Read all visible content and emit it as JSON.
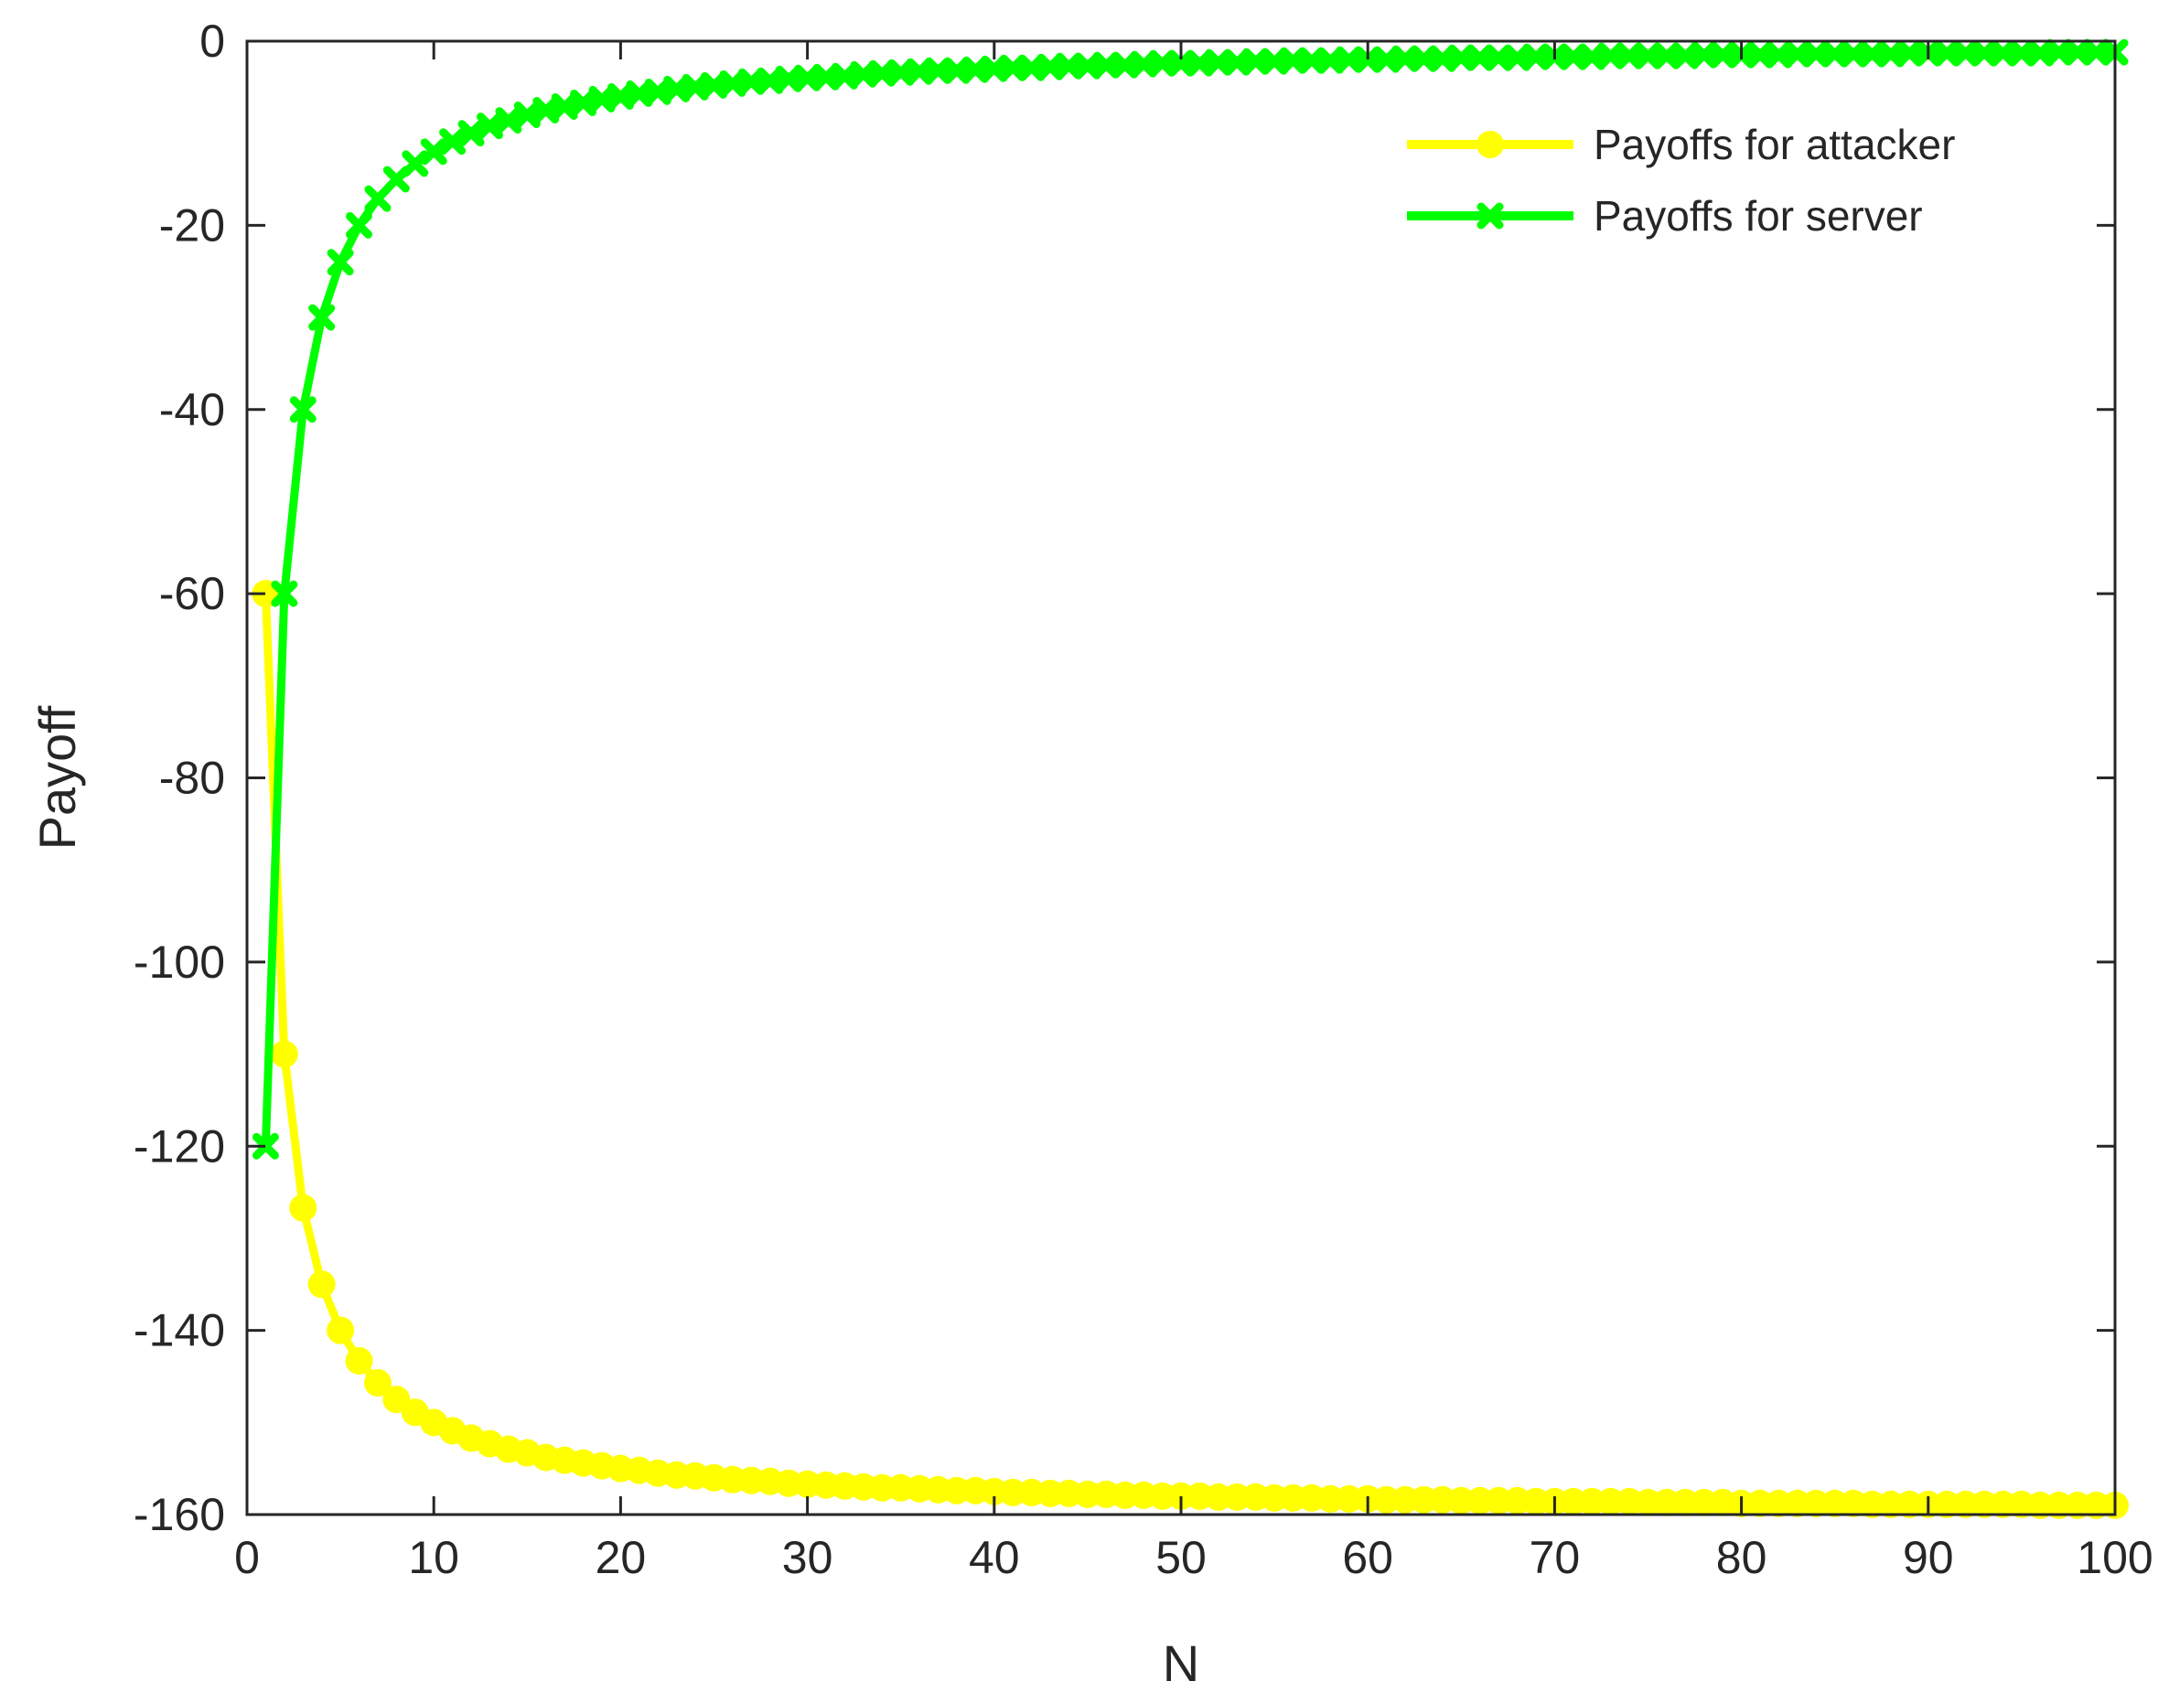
{
  "chart_data": {
    "type": "line",
    "title": "",
    "xlabel": "N",
    "ylabel": "Payoff",
    "xlim": [
      0,
      100
    ],
    "ylim": [
      -160,
      0
    ],
    "xticks": [
      0,
      10,
      20,
      30,
      40,
      50,
      60,
      70,
      80,
      90,
      100
    ],
    "yticks": [
      0,
      -20,
      -40,
      -60,
      -80,
      -100,
      -120,
      -140,
      -160
    ],
    "grid": false,
    "legend_position": "top-right",
    "x": [
      1,
      2,
      3,
      4,
      5,
      6,
      7,
      8,
      9,
      10,
      11,
      12,
      13,
      14,
      15,
      16,
      17,
      18,
      19,
      20,
      21,
      22,
      23,
      24,
      25,
      26,
      27,
      28,
      29,
      30,
      31,
      32,
      33,
      34,
      35,
      36,
      37,
      38,
      39,
      40,
      41,
      42,
      43,
      44,
      45,
      46,
      47,
      48,
      49,
      50,
      51,
      52,
      53,
      54,
      55,
      56,
      57,
      58,
      59,
      60,
      61,
      62,
      63,
      64,
      65,
      66,
      67,
      68,
      69,
      70,
      71,
      72,
      73,
      74,
      75,
      76,
      77,
      78,
      79,
      80,
      81,
      82,
      83,
      84,
      85,
      86,
      87,
      88,
      89,
      90,
      91,
      92,
      93,
      94,
      95,
      96,
      97,
      98,
      99,
      100
    ],
    "series": [
      {
        "name": "Payoffs for attacker",
        "color": "#FFFF00",
        "marker": "circle",
        "values": [
          -60.0,
          -110.0,
          -126.7,
          -135.0,
          -140.0,
          -143.3,
          -145.7,
          -147.5,
          -148.9,
          -150.0,
          -150.9,
          -151.7,
          -152.3,
          -152.9,
          -153.3,
          -153.8,
          -154.1,
          -154.4,
          -154.7,
          -155.0,
          -155.2,
          -155.5,
          -155.7,
          -155.8,
          -156.0,
          -156.2,
          -156.3,
          -156.4,
          -156.6,
          -156.7,
          -156.8,
          -156.9,
          -157.0,
          -157.1,
          -157.1,
          -157.2,
          -157.3,
          -157.4,
          -157.4,
          -157.5,
          -157.6,
          -157.6,
          -157.7,
          -157.7,
          -157.8,
          -157.8,
          -157.9,
          -157.9,
          -158.0,
          -158.0,
          -158.0,
          -158.1,
          -158.1,
          -158.1,
          -158.2,
          -158.2,
          -158.2,
          -158.3,
          -158.3,
          -158.3,
          -158.4,
          -158.4,
          -158.4,
          -158.4,
          -158.5,
          -158.5,
          -158.5,
          -158.5,
          -158.6,
          -158.6,
          -158.6,
          -158.6,
          -158.6,
          -158.6,
          -158.7,
          -158.7,
          -158.7,
          -158.7,
          -158.7,
          -158.8,
          -158.8,
          -158.8,
          -158.8,
          -158.8,
          -158.8,
          -158.8,
          -158.9,
          -158.9,
          -158.9,
          -158.9,
          -158.9,
          -158.9,
          -158.9,
          -158.9,
          -158.9,
          -159.0,
          -159.0,
          -159.0,
          -159.0,
          -159.0
        ]
      },
      {
        "name": "Payoffs for server",
        "color": "#00FF00",
        "marker": "x",
        "values": [
          -120.0,
          -60.0,
          -40.0,
          -30.0,
          -24.0,
          -20.0,
          -17.1,
          -15.0,
          -13.3,
          -12.0,
          -10.9,
          -10.0,
          -9.2,
          -8.6,
          -8.0,
          -7.5,
          -7.1,
          -6.7,
          -6.3,
          -6.0,
          -5.7,
          -5.5,
          -5.2,
          -5.0,
          -4.8,
          -4.6,
          -4.4,
          -4.3,
          -4.1,
          -4.0,
          -3.9,
          -3.8,
          -3.6,
          -3.5,
          -3.4,
          -3.3,
          -3.2,
          -3.2,
          -3.1,
          -3.0,
          -2.9,
          -2.9,
          -2.8,
          -2.7,
          -2.7,
          -2.6,
          -2.6,
          -2.5,
          -2.4,
          -2.4,
          -2.4,
          -2.3,
          -2.3,
          -2.2,
          -2.2,
          -2.1,
          -2.1,
          -2.1,
          -2.0,
          -2.0,
          -2.0,
          -1.9,
          -1.9,
          -1.9,
          -1.8,
          -1.8,
          -1.8,
          -1.8,
          -1.7,
          -1.7,
          -1.7,
          -1.7,
          -1.6,
          -1.6,
          -1.6,
          -1.6,
          -1.6,
          -1.5,
          -1.5,
          -1.5,
          -1.5,
          -1.5,
          -1.4,
          -1.4,
          -1.4,
          -1.4,
          -1.4,
          -1.4,
          -1.3,
          -1.3,
          -1.3,
          -1.3,
          -1.3,
          -1.3,
          -1.3,
          -1.3,
          -1.2,
          -1.2,
          -1.2,
          -1.2
        ]
      }
    ]
  }
}
